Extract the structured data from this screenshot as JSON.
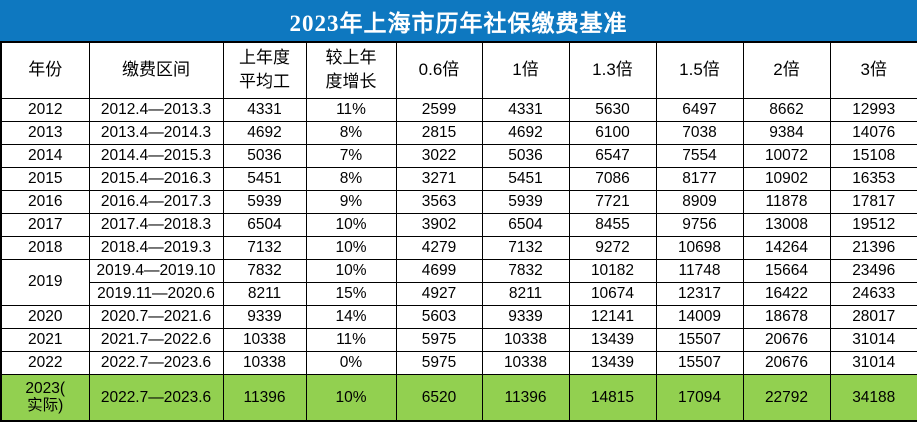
{
  "title": "2023年上海市历年社保缴费基准",
  "colors": {
    "title_bg": "#0E78C0",
    "title_text": "#FFFFFF",
    "header_bg": "#FFFFFF",
    "row_bg": "#FFFFFF",
    "highlight_row_bg": "#92D050",
    "border": "#000000",
    "text": "#000000"
  },
  "table": {
    "headers": [
      "年份",
      "缴费区间",
      "上年度\n平均工",
      "较上年\n度增长",
      "0.6倍",
      "1倍",
      "1.3倍",
      "1.5倍",
      "2倍",
      "3倍"
    ],
    "rows": [
      {
        "year": "2012",
        "period": "2012.4—2013.3",
        "avg_wage": "4331",
        "growth": "11%",
        "bases": [
          "2599",
          "4331",
          "5630",
          "6497",
          "8662",
          "12993"
        ]
      },
      {
        "year": "2013",
        "period": "2013.4—2014.3",
        "avg_wage": "4692",
        "growth": "8%",
        "bases": [
          "2815",
          "4692",
          "6100",
          "7038",
          "9384",
          "14076"
        ]
      },
      {
        "year": "2014",
        "period": "2014.4—2015.3",
        "avg_wage": "5036",
        "growth": "7%",
        "bases": [
          "3022",
          "5036",
          "6547",
          "7554",
          "10072",
          "15108"
        ]
      },
      {
        "year": "2015",
        "period": "2015.4—2016.3",
        "avg_wage": "5451",
        "growth": "8%",
        "bases": [
          "3271",
          "5451",
          "7086",
          "8177",
          "10902",
          "16353"
        ]
      },
      {
        "year": "2016",
        "period": "2016.4—2017.3",
        "avg_wage": "5939",
        "growth": "9%",
        "bases": [
          "3563",
          "5939",
          "7721",
          "8909",
          "11878",
          "17817"
        ]
      },
      {
        "year": "2017",
        "period": "2017.4—2018.3",
        "avg_wage": "6504",
        "growth": "10%",
        "bases": [
          "3902",
          "6504",
          "8455",
          "9756",
          "13008",
          "19512"
        ]
      },
      {
        "year": "2018",
        "period": "2018.4—2019.3",
        "avg_wage": "7132",
        "growth": "10%",
        "bases": [
          "4279",
          "7132",
          "9272",
          "10698",
          "14264",
          "21396"
        ]
      },
      {
        "year": "2019",
        "rowspan": 2,
        "period": "2019.4—2019.10",
        "avg_wage": "7832",
        "growth": "10%",
        "bases": [
          "4699",
          "7832",
          "10182",
          "11748",
          "15664",
          "23496"
        ]
      },
      {
        "year": null,
        "period": "2019.11—2020.6",
        "avg_wage": "8211",
        "growth": "15%",
        "bases": [
          "4927",
          "8211",
          "10674",
          "12317",
          "16422",
          "24633"
        ]
      },
      {
        "year": "2020",
        "period": "2020.7—2021.6",
        "avg_wage": "9339",
        "growth": "14%",
        "bases": [
          "5603",
          "9339",
          "12141",
          "14009",
          "18678",
          "28017"
        ]
      },
      {
        "year": "2021",
        "period": "2021.7—2022.6",
        "avg_wage": "10338",
        "growth": "11%",
        "bases": [
          "5975",
          "10338",
          "13439",
          "15507",
          "20676",
          "31014"
        ]
      },
      {
        "year": "2022",
        "period": "2022.7—2023.6",
        "avg_wage": "10338",
        "growth": "0%",
        "bases": [
          "5975",
          "10338",
          "13439",
          "15507",
          "20676",
          "31014"
        ]
      },
      {
        "year": "2023(\n实际)",
        "highlight": true,
        "period": "2022.7—2023.6",
        "avg_wage": "11396",
        "growth": "10%",
        "bases": [
          "6520",
          "11396",
          "14815",
          "17094",
          "22792",
          "34188"
        ]
      }
    ]
  },
  "chart_data": {
    "type": "table",
    "title": "2023年上海市历年社保缴费基准",
    "columns": [
      "年份",
      "缴费区间",
      "上年度平均工",
      "较上年度增长",
      "0.6倍",
      "1倍",
      "1.3倍",
      "1.5倍",
      "2倍",
      "3倍"
    ],
    "rows": [
      [
        "2012",
        "2012.4—2013.3",
        4331,
        "11%",
        2599,
        4331,
        5630,
        6497,
        8662,
        12993
      ],
      [
        "2013",
        "2013.4—2014.3",
        4692,
        "8%",
        2815,
        4692,
        6100,
        7038,
        9384,
        14076
      ],
      [
        "2014",
        "2014.4—2015.3",
        5036,
        "7%",
        3022,
        5036,
        6547,
        7554,
        10072,
        15108
      ],
      [
        "2015",
        "2015.4—2016.3",
        5451,
        "8%",
        3271,
        5451,
        7086,
        8177,
        10902,
        16353
      ],
      [
        "2016",
        "2016.4—2017.3",
        5939,
        "9%",
        3563,
        5939,
        7721,
        8909,
        11878,
        17817
      ],
      [
        "2017",
        "2017.4—2018.3",
        6504,
        "10%",
        3902,
        6504,
        8455,
        9756,
        13008,
        19512
      ],
      [
        "2018",
        "2018.4—2019.3",
        7132,
        "10%",
        4279,
        7132,
        9272,
        10698,
        14264,
        21396
      ],
      [
        "2019",
        "2019.4—2019.10",
        7832,
        "10%",
        4699,
        7832,
        10182,
        11748,
        15664,
        23496
      ],
      [
        "2019",
        "2019.11—2020.6",
        8211,
        "15%",
        4927,
        8211,
        10674,
        12317,
        16422,
        24633
      ],
      [
        "2020",
        "2020.7—2021.6",
        9339,
        "14%",
        5603,
        9339,
        12141,
        14009,
        18678,
        28017
      ],
      [
        "2021",
        "2021.7—2022.6",
        10338,
        "11%",
        5975,
        10338,
        13439,
        15507,
        20676,
        31014
      ],
      [
        "2022",
        "2022.7—2023.6",
        10338,
        "0%",
        5975,
        10338,
        13439,
        15507,
        20676,
        31014
      ],
      [
        "2023(实际)",
        "2022.7—2023.6",
        11396,
        "10%",
        6520,
        11396,
        14815,
        17094,
        22792,
        34188
      ]
    ],
    "notes": {
      "highlight_row": "2023(实际) row has green background",
      "merged_cells": "year 2019 spans two period rows"
    }
  }
}
